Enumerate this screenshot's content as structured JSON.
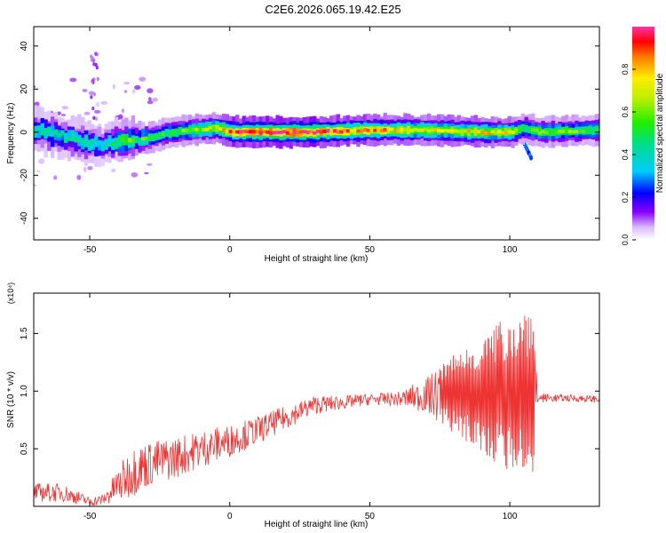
{
  "title": "C2E6.2026.065.19.42.E25",
  "chart_data": [
    {
      "type": "heatmap",
      "name": "spectrogram",
      "xlabel": "Height of straight line (km)",
      "ylabel": "Frequency (Hz)",
      "xlim": [
        -70,
        132
      ],
      "ylim": [
        -50,
        49
      ],
      "xticks": [
        -50,
        0,
        50,
        100
      ],
      "yticks": [
        -40,
        -20,
        0,
        20,
        40
      ],
      "colorbar": {
        "label": "Normalized spectral amplitude",
        "range": [
          0,
          1
        ],
        "ticks": [
          "0.0",
          "0.2",
          "0.4",
          "0.6",
          "0.8"
        ],
        "tick_values": [
          0.0,
          0.2,
          0.4,
          0.6,
          0.8
        ]
      },
      "ridge": {
        "x": [
          -70,
          -60,
          -50,
          -45,
          -40,
          -30,
          -25,
          -15,
          -5,
          0,
          10,
          30,
          50,
          70,
          90,
          100,
          105,
          110,
          132
        ],
        "freq": [
          1,
          -2,
          -5,
          -6,
          -4,
          -3,
          -1,
          1,
          2,
          0,
          0,
          0,
          1,
          1,
          0,
          0,
          2,
          0,
          1
        ],
        "amplitude": [
          0.45,
          0.4,
          0.45,
          0.35,
          0.55,
          0.55,
          0.5,
          0.6,
          0.7,
          0.9,
          0.95,
          0.95,
          0.8,
          0.7,
          0.75,
          0.7,
          0.5,
          0.6,
          0.55
        ]
      }
    },
    {
      "type": "line",
      "name": "snr",
      "xlabel": "Height of straight line (km)",
      "ylabel": "SNR (10 * v/v)",
      "scale_label": "(x10⁴)",
      "xlim": [
        -70,
        132
      ],
      "ylim": [
        0,
        1.85
      ],
      "xticks": [
        -50,
        0,
        50,
        100
      ],
      "yticks": [
        0.5,
        1.0,
        1.5
      ],
      "ytick_labels": [
        "0.5",
        "1.0",
        "1.5"
      ],
      "color": "#ee3333",
      "envelope": {
        "x": [
          -70,
          -60,
          -50,
          -45,
          -40,
          -35,
          -30,
          -20,
          -10,
          0,
          10,
          20,
          30,
          40,
          50,
          60,
          70,
          80,
          90,
          100,
          104,
          107,
          108,
          110,
          120,
          132
        ],
        "mean": [
          0.12,
          0.12,
          0.04,
          0.06,
          0.18,
          0.3,
          0.36,
          0.42,
          0.5,
          0.57,
          0.66,
          0.77,
          0.88,
          0.9,
          0.93,
          0.93,
          0.96,
          0.98,
          0.97,
          0.98,
          0.98,
          0.95,
          0.95,
          0.94,
          0.94,
          0.93
        ],
        "spread": [
          0.08,
          0.08,
          0.04,
          0.05,
          0.15,
          0.22,
          0.2,
          0.18,
          0.16,
          0.14,
          0.12,
          0.1,
          0.08,
          0.06,
          0.05,
          0.06,
          0.15,
          0.35,
          0.5,
          0.7,
          0.7,
          0.9,
          0.9,
          0.04,
          0.03,
          0.03
        ]
      }
    }
  ]
}
